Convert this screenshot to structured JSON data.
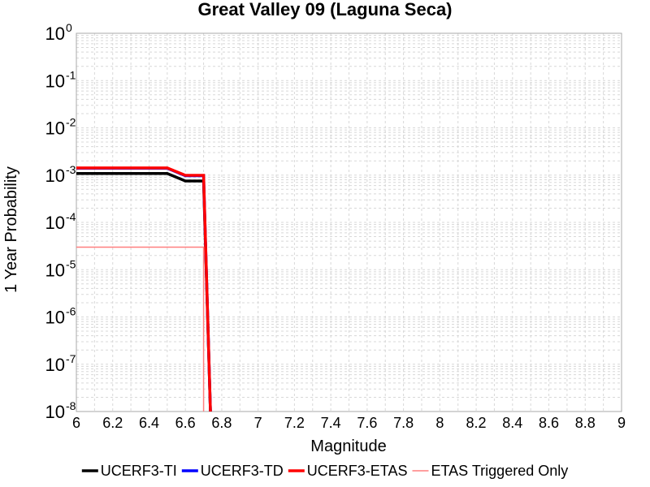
{
  "chart_data": {
    "type": "line",
    "title": "Great Valley 09 (Laguna Seca)",
    "xlabel": "Magnitude",
    "ylabel": "1 Year Probability",
    "xlim": [
      6,
      9
    ],
    "ylim": [
      1e-08,
      1
    ],
    "y_scale": "log",
    "x_ticks": [
      "6",
      "6.2",
      "6.4",
      "6.6",
      "6.8",
      "7",
      "7.2",
      "7.4",
      "7.6",
      "7.8",
      "8",
      "8.2",
      "8.4",
      "8.6",
      "8.8",
      "9"
    ],
    "y_ticks": [
      {
        "value": 1,
        "base": "10",
        "exp": "0"
      },
      {
        "value": 0.1,
        "base": "10",
        "exp": "-1"
      },
      {
        "value": 0.01,
        "base": "10",
        "exp": "-2"
      },
      {
        "value": 0.001,
        "base": "10",
        "exp": "-3"
      },
      {
        "value": 0.0001,
        "base": "10",
        "exp": "-4"
      },
      {
        "value": 1e-05,
        "base": "10",
        "exp": "-5"
      },
      {
        "value": 1e-06,
        "base": "10",
        "exp": "-6"
      },
      {
        "value": 1e-07,
        "base": "10",
        "exp": "-7"
      },
      {
        "value": 1e-08,
        "base": "10",
        "exp": "-8"
      }
    ],
    "grid": true,
    "legend_position": "bottom",
    "series": [
      {
        "name": "UCERF3-TI",
        "color": "#000000",
        "width": "thick",
        "x": [
          6.0,
          6.5,
          6.6,
          6.7,
          6.74
        ],
        "y": [
          0.00108,
          0.00108,
          0.00075,
          0.00075,
          5e-09
        ]
      },
      {
        "name": "UCERF3-TD",
        "color": "#0000ff",
        "width": "thick",
        "x": [
          6.0,
          6.5,
          6.6,
          6.7,
          6.74
        ],
        "y": [
          0.0014,
          0.0014,
          0.00097,
          0.00097,
          5e-09
        ]
      },
      {
        "name": "UCERF3-ETAS",
        "color": "#ff0000",
        "width": "thick",
        "x": [
          6.0,
          6.5,
          6.6,
          6.7,
          6.74
        ],
        "y": [
          0.00142,
          0.00142,
          0.00099,
          0.00099,
          5e-09
        ]
      },
      {
        "name": "ETAS Triggered Only",
        "color": "#ff7f7f",
        "width": "thin",
        "x": [
          6.0,
          6.7,
          6.7
        ],
        "y": [
          3e-05,
          3e-05,
          5e-09
        ]
      }
    ]
  }
}
